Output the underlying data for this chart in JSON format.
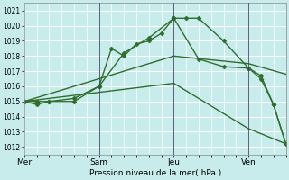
{
  "xlabel": "Pression niveau de la mer( hPa )",
  "background_color": "#c8ecec",
  "grid_color": "#ffffff",
  "line_color": "#2d6e2d",
  "ylim": [
    1011.5,
    1021.5
  ],
  "yticks": [
    1012,
    1013,
    1014,
    1015,
    1016,
    1017,
    1018,
    1019,
    1020,
    1021
  ],
  "day_labels": [
    "Mer",
    "Sam",
    "Jeu",
    "Ven"
  ],
  "day_positions": [
    0,
    3,
    6,
    9
  ],
  "vline_x": [
    3,
    6,
    9
  ],
  "xlim": [
    0,
    10.5
  ],
  "series": [
    {
      "x": [
        0,
        0.5,
        1,
        2,
        3,
        3.5,
        4,
        4.5,
        5,
        5.5,
        6,
        6.5,
        7,
        8,
        9,
        9.5,
        10,
        10.5
      ],
      "y": [
        1015.0,
        1015.0,
        1015.0,
        1015.2,
        1016.0,
        1018.5,
        1018.0,
        1018.8,
        1019.0,
        1019.5,
        1020.5,
        1020.5,
        1020.5,
        1019.0,
        1017.2,
        1016.7,
        1014.8,
        1012.2
      ],
      "marker": "D",
      "ms": 2.5,
      "lw": 1.0
    },
    {
      "x": [
        0,
        0.5,
        1,
        2,
        3,
        4,
        5,
        6,
        7,
        8,
        9,
        9.5,
        10,
        10.5
      ],
      "y": [
        1015.0,
        1014.8,
        1015.0,
        1015.0,
        1016.0,
        1018.2,
        1019.2,
        1020.5,
        1017.8,
        1017.3,
        1017.2,
        1016.5,
        1014.8,
        1012.2
      ],
      "marker": "D",
      "ms": 2.5,
      "lw": 1.0
    },
    {
      "x": [
        0,
        6,
        9,
        10.5
      ],
      "y": [
        1015.0,
        1018.0,
        1017.5,
        1016.8
      ],
      "marker": null,
      "ms": 0,
      "lw": 1.0
    },
    {
      "x": [
        0,
        6,
        9,
        10.5
      ],
      "y": [
        1015.0,
        1016.2,
        1013.2,
        1012.2
      ],
      "marker": null,
      "ms": 0,
      "lw": 1.0
    }
  ]
}
